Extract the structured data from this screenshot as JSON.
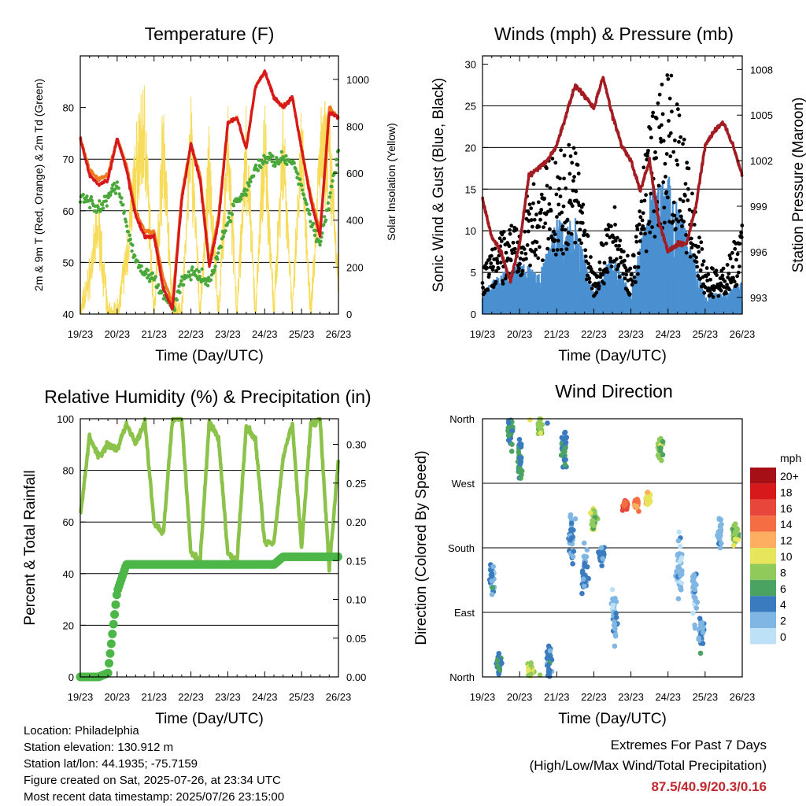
{
  "colors": {
    "temp_red": "#d7191c",
    "temp_orange": "#f07b1e",
    "dewpoint_green": "#4aa83b",
    "solar_yellow": "#f7dc5b",
    "wind_blue": "#4a90d0",
    "gust_black": "#000000",
    "pressure_maroon": "#a31c22",
    "rh_light_green": "#8bc34a",
    "precip_green": "#4cb748"
  },
  "x_ticks": [
    "19/23",
    "20/23",
    "21/23",
    "22/23",
    "23/23",
    "24/23",
    "25/23",
    "26/23"
  ],
  "chart_data": [
    {
      "type": "line",
      "title": "Temperature (F)",
      "xlabel": "Time (Day/UTC)",
      "ylabel": "2m & 9m T (Red, Orange) & 2m Td (Green)",
      "y2label": "Solar Insolation (Yellow)",
      "ylim": [
        40,
        90
      ],
      "yticks": [
        "40",
        "50",
        "60",
        "70",
        "80"
      ],
      "y2lim": [
        0,
        1100
      ],
      "y2ticks": [
        "0",
        "200",
        "400",
        "600",
        "800",
        "1000"
      ],
      "x_days": [
        0,
        0.25,
        0.5,
        0.75,
        1,
        1.25,
        1.5,
        1.75,
        2,
        2.25,
        2.5,
        2.75,
        3,
        3.25,
        3.5,
        3.75,
        4,
        4.25,
        4.5,
        4.75,
        5,
        5.25,
        5.5,
        5.75,
        6,
        6.25,
        6.5,
        6.75,
        7
      ],
      "series": [
        {
          "name": "2m T",
          "values": [
            74,
            67,
            65,
            66,
            74,
            68,
            59,
            55,
            55,
            45,
            41,
            62,
            73,
            66,
            49,
            58,
            77,
            78,
            72,
            84,
            87,
            82,
            80,
            82,
            72,
            62,
            55,
            79,
            78
          ]
        },
        {
          "name": "9m T",
          "values": [
            74,
            68,
            66,
            67,
            74,
            69,
            60,
            56,
            56,
            47,
            42,
            63,
            73,
            67,
            50,
            59,
            77,
            78,
            72,
            84,
            87,
            82,
            80,
            82,
            72,
            63,
            56,
            80,
            78
          ]
        },
        {
          "name": "2m Td",
          "values": [
            63,
            62,
            60,
            63,
            65,
            58,
            50,
            48,
            47,
            44,
            41,
            46,
            48,
            47,
            46,
            52,
            58,
            62,
            64,
            68,
            70,
            70,
            70,
            69,
            65,
            58,
            54,
            62,
            71
          ]
        },
        {
          "name": "Solar",
          "values": [
            0,
            200,
            480,
            0,
            0,
            300,
            780,
            1000,
            0,
            950,
            0,
            0,
            950,
            0,
            800,
            0,
            900,
            0,
            900,
            0,
            950,
            0,
            950,
            0,
            900,
            0,
            850,
            900,
            150
          ]
        }
      ]
    },
    {
      "type": "scatter",
      "title": "Winds (mph) & Pressure (mb)",
      "xlabel": "Time (Day/UTC)",
      "ylabel": "Sonic Wind & Gust (Blue, Black)",
      "y2label": "Station Pressure (Maroon)",
      "ylim": [
        0,
        31
      ],
      "yticks": [
        "0",
        "5",
        "10",
        "15",
        "20",
        "25",
        "30"
      ],
      "y2lim": [
        991.9,
        1008.9
      ],
      "y2ticks": [
        "993",
        "996",
        "999",
        "1002",
        "1005",
        "1008"
      ],
      "x_days": [
        0,
        0.5,
        1,
        1.5,
        2,
        2.5,
        3,
        3.5,
        4,
        4.5,
        5,
        5.5,
        6,
        6.5,
        7
      ],
      "wind": [
        2,
        4,
        5,
        4,
        9,
        9,
        2,
        6,
        2,
        12,
        13,
        8,
        2,
        2,
        3
      ],
      "gust": [
        4,
        7,
        9,
        12,
        14,
        15,
        4,
        10,
        4,
        17,
        22,
        14,
        4,
        4,
        8
      ],
      "pressure_x": [
        0,
        0.25,
        0.5,
        0.75,
        1,
        1.25,
        1.5,
        1.75,
        2,
        2.5,
        3,
        3.25,
        3.5,
        3.75,
        4,
        4.25,
        4.5,
        4.75,
        5,
        5.25,
        5.5,
        5.75,
        6,
        6.25,
        6.5,
        6.75,
        7
      ],
      "pressure": [
        999.5,
        997,
        996,
        994,
        996.5,
        1001,
        1001.5,
        1002,
        1003,
        1007,
        1005.5,
        1007.5,
        1005,
        1003,
        1002,
        1000,
        1002,
        998,
        996,
        996.5,
        996.5,
        999,
        1003,
        1004,
        1004.5,
        1003,
        1001
      ]
    },
    {
      "type": "line",
      "title": "Relative Humidity (%) & Precipitation (in)",
      "xlabel": "Time (Day/UTC)",
      "ylabel": "Percent & Total Rainfall",
      "ylim": [
        0,
        100
      ],
      "yticks": [
        "0",
        "20",
        "40",
        "60",
        "80",
        "100"
      ],
      "y2lim": [
        0,
        0.333
      ],
      "y2ticks": [
        "0.00",
        "0.05",
        "0.10",
        "0.15",
        "0.20",
        "0.25",
        "0.30"
      ],
      "x_days": [
        0,
        0.25,
        0.5,
        0.75,
        1,
        1.25,
        1.5,
        1.75,
        2,
        2.25,
        2.5,
        2.75,
        3,
        3.25,
        3.5,
        3.75,
        4,
        4.25,
        4.5,
        4.75,
        5,
        5.25,
        5.5,
        5.75,
        6,
        6.25,
        6.5,
        6.75,
        7
      ],
      "series": [
        {
          "name": "RH",
          "values": [
            62,
            93,
            85,
            90,
            88,
            98,
            90,
            99,
            60,
            55,
            100,
            100,
            48,
            45,
            99,
            92,
            48,
            45,
            97,
            92,
            52,
            52,
            85,
            98,
            50,
            98,
            100,
            42,
            84
          ]
        },
        {
          "name": "Precip",
          "values": [
            0,
            0,
            0,
            0.005,
            0.11,
            0.145,
            0.145,
            0.145,
            0.145,
            0.145,
            0.145,
            0.145,
            0.145,
            0.145,
            0.145,
            0.145,
            0.145,
            0.145,
            0.145,
            0.145,
            0.145,
            0.145,
            0.155,
            0.155,
            0.155,
            0.155,
            0.155,
            0.155,
            0.155
          ]
        }
      ]
    },
    {
      "type": "scatter",
      "title": "Wind Direction",
      "xlabel": "Time (Day/UTC)",
      "ylabel": "Direction (Colored By Speed)",
      "yticks": [
        "North",
        "East",
        "South",
        "West",
        "North"
      ],
      "legend_title": "mph",
      "legend_labels": [
        "20+",
        "18",
        "16",
        "14",
        "12",
        "10",
        "8",
        "6",
        "4",
        "2",
        "0"
      ],
      "legend_colors": [
        "#a50f15",
        "#d7191c",
        "#e8463a",
        "#f46d43",
        "#fdae61",
        "#e6e55c",
        "#8fca5a",
        "#4aa360",
        "#3a7bbf",
        "#7fb6e3",
        "#bde2f7"
      ],
      "clusters": [
        {
          "x": 0.25,
          "dir": 135,
          "spread": 40,
          "speed": 3
        },
        {
          "x": 0.45,
          "dir": 20,
          "spread": 30,
          "speed": 5
        },
        {
          "x": 0.75,
          "dir": 340,
          "spread": 30,
          "speed": 6
        },
        {
          "x": 1.0,
          "dir": 300,
          "spread": 50,
          "speed": 5
        },
        {
          "x": 1.3,
          "dir": 10,
          "spread": 20,
          "speed": 9
        },
        {
          "x": 1.55,
          "dir": 350,
          "spread": 20,
          "speed": 8
        },
        {
          "x": 1.8,
          "dir": 20,
          "spread": 40,
          "speed": 4
        },
        {
          "x": 2.2,
          "dir": 320,
          "spread": 50,
          "speed": 5
        },
        {
          "x": 2.4,
          "dir": 200,
          "spread": 60,
          "speed": 3
        },
        {
          "x": 2.75,
          "dir": 150,
          "spread": 60,
          "speed": 3
        },
        {
          "x": 3.0,
          "dir": 220,
          "spread": 30,
          "speed": 8
        },
        {
          "x": 3.2,
          "dir": 170,
          "spread": 20,
          "speed": 4
        },
        {
          "x": 3.55,
          "dir": 90,
          "spread": 70,
          "speed": 2
        },
        {
          "x": 3.85,
          "dir": 240,
          "spread": 15,
          "speed": 15
        },
        {
          "x": 4.15,
          "dir": 240,
          "spread": 15,
          "speed": 14
        },
        {
          "x": 4.45,
          "dir": 250,
          "spread": 15,
          "speed": 10
        },
        {
          "x": 4.8,
          "dir": 320,
          "spread": 30,
          "speed": 8
        },
        {
          "x": 5.3,
          "dir": 150,
          "spread": 80,
          "speed": 2
        },
        {
          "x": 5.7,
          "dir": 120,
          "spread": 60,
          "speed": 2
        },
        {
          "x": 5.9,
          "dir": 60,
          "spread": 40,
          "speed": 3
        },
        {
          "x": 6.4,
          "dir": 200,
          "spread": 30,
          "speed": 2
        },
        {
          "x": 6.8,
          "dir": 200,
          "spread": 25,
          "speed": 8
        }
      ]
    }
  ],
  "info": {
    "location": "Location: Philadelphia",
    "elevation": "Station elevation: 130.912 m",
    "latlon": "Station lat/lon: 44.1935; -75.7159",
    "created": "Figure created on Sat, 2025-07-26, at 23:34 UTC",
    "recent": "Most recent data timestamp: 2025/07/26 23:15:00"
  },
  "extremes": {
    "line1": "Extremes For Past 7 Days",
    "line2": "(High/Low/Max Wind/Total Precipitation)",
    "value": "87.5/40.9/20.3/0.16"
  }
}
